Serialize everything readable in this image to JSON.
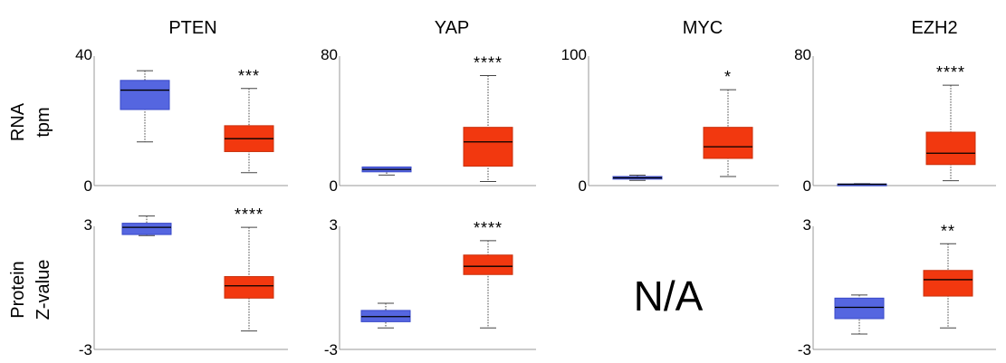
{
  "colors": {
    "normal": "#5566e0",
    "normal_edge": "#3949c8",
    "tumor": "#f2380f",
    "tumor_edge": "#c9300c",
    "median": "#000000",
    "axis": "#999999"
  },
  "row_labels": {
    "rna": [
      "RNA",
      "tpm"
    ],
    "protein": [
      "Protein",
      "Z-value"
    ]
  },
  "na_label": "N/A",
  "chart_data": [
    {
      "type": "box",
      "gene": "PTEN",
      "row": "rna",
      "title": "PTEN",
      "ylim": [
        0,
        40
      ],
      "yticks": [
        "40",
        "0"
      ],
      "significance": "***",
      "series": [
        {
          "group": "normal",
          "whisker_low": 13.5,
          "q1": 23.5,
          "median": 29.5,
          "q3": 32.5,
          "whisker_high": 35.5
        },
        {
          "group": "tumor",
          "whisker_low": 4,
          "q1": 10.5,
          "median": 14.5,
          "q3": 18.5,
          "whisker_high": 30
        }
      ]
    },
    {
      "type": "box",
      "gene": "YAP",
      "row": "rna",
      "title": "YAP",
      "ylim": [
        0,
        80
      ],
      "yticks": [
        "80",
        "0"
      ],
      "significance": "****",
      "series": [
        {
          "group": "normal",
          "whisker_low": 6.5,
          "q1": 8.5,
          "median": 10,
          "q3": 11.5,
          "whisker_high": 11.5
        },
        {
          "group": "tumor",
          "whisker_low": 2.5,
          "q1": 12,
          "median": 27,
          "q3": 36,
          "whisker_high": 68
        }
      ]
    },
    {
      "type": "box",
      "gene": "MYC",
      "row": "rna",
      "title": "MYC",
      "ylim": [
        0,
        100
      ],
      "yticks": [
        "100",
        "0"
      ],
      "significance": "*",
      "series": [
        {
          "group": "normal",
          "whisker_low": 4,
          "q1": 5,
          "median": 6,
          "q3": 7,
          "whisker_high": 8
        },
        {
          "group": "tumor",
          "whisker_low": 7,
          "q1": 21,
          "median": 30,
          "q3": 45,
          "whisker_high": 74
        }
      ]
    },
    {
      "type": "box",
      "gene": "EZH2",
      "row": "rna",
      "title": "EZH2",
      "ylim": [
        0,
        80
      ],
      "yticks": [
        "80",
        "0"
      ],
      "significance": "****",
      "series": [
        {
          "group": "normal",
          "whisker_low": 0.3,
          "q1": 0.5,
          "median": 0.8,
          "q3": 1,
          "whisker_high": 1.2
        },
        {
          "group": "tumor",
          "whisker_low": 3,
          "q1": 13,
          "median": 20,
          "q3": 33,
          "whisker_high": 62
        }
      ]
    },
    {
      "type": "box",
      "gene": "PTEN",
      "row": "protein",
      "ylim": [
        -3,
        3
      ],
      "yticks": [
        "3",
        "-3"
      ],
      "significance": "****",
      "series": [
        {
          "group": "normal",
          "whisker_low": 2.55,
          "q1": 2.6,
          "median": 2.95,
          "q3": 3.15,
          "whisker_high": 3.5
        },
        {
          "group": "tumor",
          "whisker_low": -2.1,
          "q1": -0.5,
          "median": 0.1,
          "q3": 0.55,
          "whisker_high": 2.95
        }
      ]
    },
    {
      "type": "box",
      "gene": "YAP",
      "row": "protein",
      "ylim": [
        -3,
        3
      ],
      "yticks": [
        "3",
        "-3"
      ],
      "significance": "****",
      "series": [
        {
          "group": "normal",
          "whisker_low": -1.95,
          "q1": -1.65,
          "median": -1.4,
          "q3": -1.1,
          "whisker_high": -0.75
        },
        {
          "group": "tumor",
          "whisker_low": -1.95,
          "q1": 0.65,
          "median": 1.05,
          "q3": 1.6,
          "whisker_high": 2.3
        }
      ]
    },
    {
      "type": "box",
      "gene": "EZH2",
      "row": "protein",
      "ylim": [
        -3,
        3
      ],
      "yticks": [
        "3",
        "-3"
      ],
      "significance": "**",
      "series": [
        {
          "group": "normal",
          "whisker_low": -2.25,
          "q1": -1.5,
          "median": -0.95,
          "q3": -0.5,
          "whisker_high": -0.35
        },
        {
          "group": "tumor",
          "whisker_low": -1.95,
          "q1": -0.4,
          "median": 0.4,
          "q3": 0.85,
          "whisker_high": 2.15
        }
      ]
    }
  ]
}
